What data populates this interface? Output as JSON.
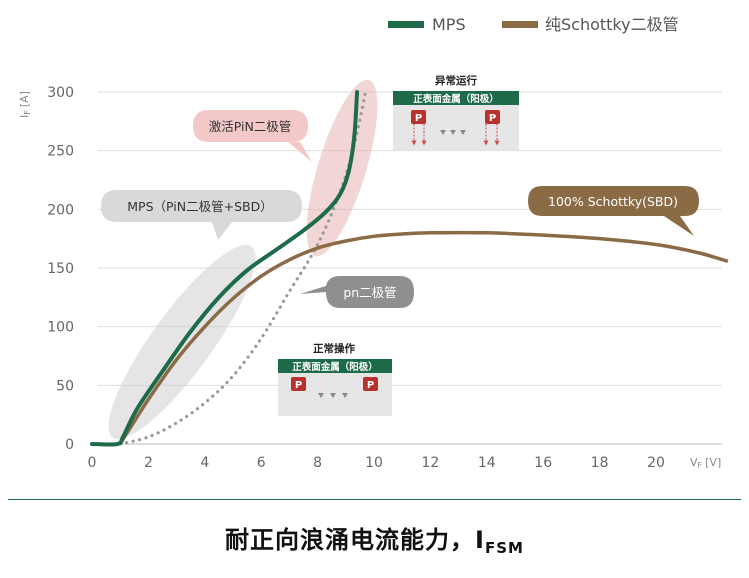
{
  "chart_data": {
    "type": "line",
    "xlabel": "V",
    "xlabel_sub": "F",
    "xunit": "[V]",
    "ylabel": "I",
    "ylabel_sub": "F",
    "yunit": "[A]",
    "xlim": [
      0,
      22.5
    ],
    "ylim": [
      0,
      300
    ],
    "xticks": [
      0,
      2,
      4,
      6,
      8,
      10,
      12,
      14,
      16,
      18,
      20
    ],
    "yticks": [
      0,
      50,
      100,
      150,
      200,
      250,
      300
    ],
    "grid": "horizontal",
    "legend_position": "top-right",
    "series": [
      {
        "name": "MPS",
        "color": "#1e6b4a",
        "style": "solid",
        "points": [
          [
            0,
            0
          ],
          [
            0.9,
            0
          ],
          [
            1.1,
            6
          ],
          [
            1.6,
            30
          ],
          [
            2.5,
            62
          ],
          [
            3.5,
            96
          ],
          [
            4.5,
            125
          ],
          [
            5.5,
            148
          ],
          [
            6.5,
            165
          ],
          [
            7.5,
            182
          ],
          [
            8.3,
            198
          ],
          [
            8.8,
            213
          ],
          [
            9.1,
            232
          ],
          [
            9.3,
            262
          ],
          [
            9.4,
            300
          ]
        ]
      },
      {
        "name": "纯Schottky二极管",
        "color": "#8b6a46",
        "style": "solid",
        "points": [
          [
            0,
            0
          ],
          [
            0.9,
            0
          ],
          [
            1.2,
            8
          ],
          [
            2,
            38
          ],
          [
            3,
            72
          ],
          [
            4,
            100
          ],
          [
            5,
            124
          ],
          [
            6,
            143
          ],
          [
            7,
            157
          ],
          [
            8,
            167
          ],
          [
            9,
            173
          ],
          [
            10,
            177
          ],
          [
            11,
            179
          ],
          [
            12,
            180
          ],
          [
            14,
            180
          ],
          [
            16,
            178
          ],
          [
            18,
            175
          ],
          [
            20,
            170
          ],
          [
            21.5,
            163
          ],
          [
            22.5,
            156
          ]
        ]
      },
      {
        "name": "pn二极管",
        "color": "#999999",
        "style": "dotted",
        "points": [
          [
            1,
            0
          ],
          [
            2,
            6
          ],
          [
            3,
            18
          ],
          [
            4,
            35
          ],
          [
            5,
            58
          ],
          [
            6,
            90
          ],
          [
            7,
            130
          ],
          [
            8,
            170
          ],
          [
            8.8,
            215
          ],
          [
            9.3,
            255
          ],
          [
            9.7,
            300
          ]
        ]
      }
    ],
    "annotations": {
      "pin": "激活PiN二极管",
      "mps": "MPS（PiN二极管+SBD）",
      "pn": "pn二极管",
      "schottky": "100% Schottky(SBD)"
    },
    "insets": {
      "abnormal": {
        "title": "异常运行",
        "bar": "正表面金属（阳极）",
        "p": "P"
      },
      "normal": {
        "title": "正常操作",
        "bar": "正表面金属（阳极）",
        "p": "P"
      }
    },
    "title": "耐正向浪涌电流能力，I",
    "title_sub": "FSM"
  },
  "colors": {
    "mps": "#1e6b4a",
    "schottky": "#8b6a46",
    "pn": "#999999",
    "p_box": "#b8312f"
  }
}
